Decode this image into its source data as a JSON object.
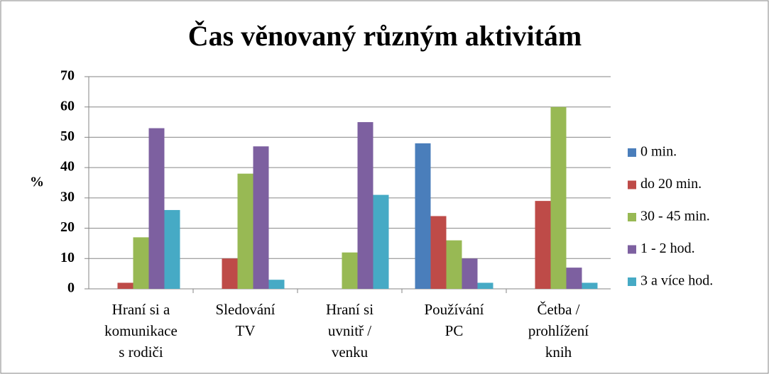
{
  "chart_data": {
    "type": "bar",
    "title": "Čas věnovaný různým aktivitám",
    "y_label": "%",
    "categories": [
      "Hraní si a\nkomunikace\ns rodiči",
      "Sledování\nTV",
      "Hraní si\nuvnitř /\nvenku",
      "Používání\nPC",
      "Četba /\nprohlížení\nknih"
    ],
    "series": [
      {
        "name": "0 min.",
        "color": "#4a7ebb",
        "values": [
          0,
          0,
          0,
          48,
          0
        ]
      },
      {
        "name": "do 20 min.",
        "color": "#be4b48",
        "values": [
          2,
          10,
          0,
          24,
          29
        ]
      },
      {
        "name": "30 - 45 min.",
        "color": "#98b954",
        "values": [
          17,
          38,
          12,
          16,
          60
        ]
      },
      {
        "name": "1 - 2 hod.",
        "color": "#7d60a0",
        "values": [
          53,
          47,
          55,
          10,
          7
        ]
      },
      {
        "name": "3 a více hod.",
        "color": "#46aac5",
        "values": [
          26,
          3,
          31,
          2,
          2
        ]
      }
    ],
    "ylim": [
      0,
      70
    ],
    "yticks": [
      0,
      10,
      20,
      30,
      40,
      50,
      60,
      70
    ],
    "grid": true,
    "legend": "right"
  }
}
